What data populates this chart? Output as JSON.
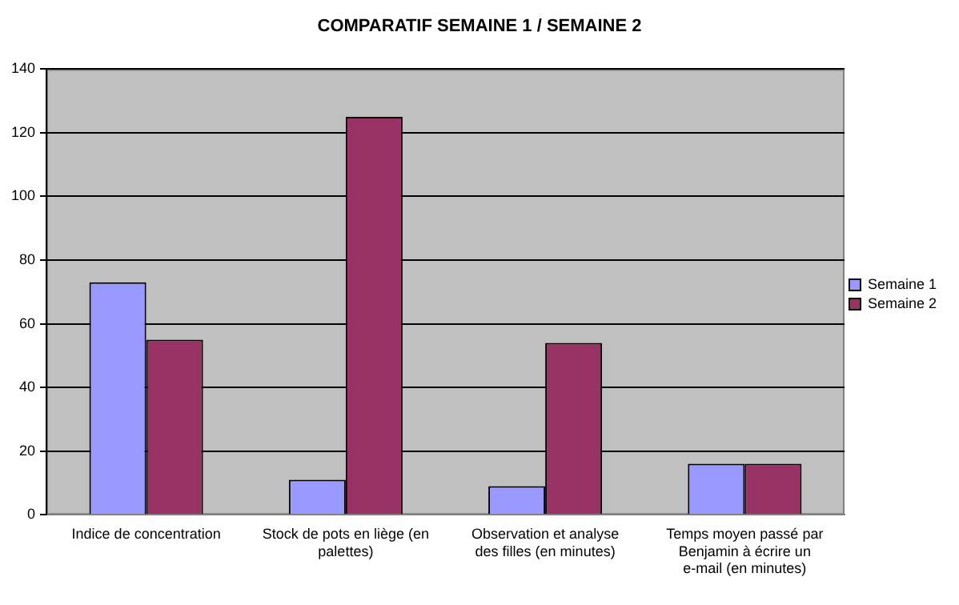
{
  "chart_data": {
    "type": "bar",
    "title": "COMPARATIF SEMAINE 1 / SEMAINE 2",
    "categories": [
      "Indice de concentration",
      "Stock de pots en liège (en palettes)",
      "Observation et analyse des filles (en minutes)",
      "Temps moyen passé par Benjamin à écrire un e-mail (en minutes)"
    ],
    "series": [
      {
        "name": "Semaine 1",
        "color": "#9999ff",
        "values": [
          73,
          11,
          9,
          16
        ]
      },
      {
        "name": "Semaine 2",
        "color": "#993366",
        "values": [
          55,
          125,
          54,
          16
        ]
      }
    ],
    "ylim": [
      0,
      140
    ],
    "yticks": [
      0,
      20,
      40,
      60,
      80,
      100,
      120,
      140
    ],
    "grid": "y",
    "legend": "right"
  }
}
